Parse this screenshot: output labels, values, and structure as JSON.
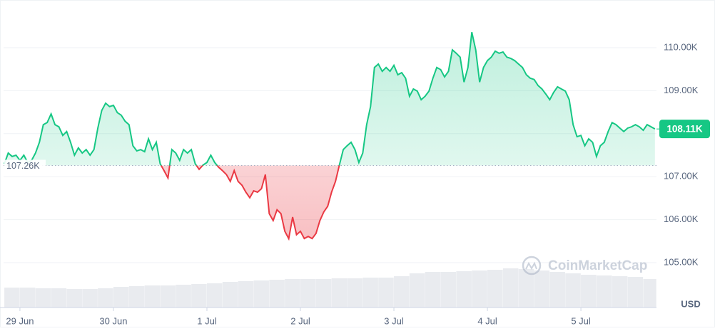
{
  "chart_data": {
    "type": "baseline-line",
    "x": [
      -4,
      -3,
      -2,
      -1,
      0,
      1,
      2,
      3,
      4,
      5,
      6,
      7,
      8,
      9,
      10,
      11,
      12,
      13,
      14,
      15,
      16,
      17,
      18,
      19,
      20,
      21,
      22,
      23,
      24,
      25,
      26,
      27,
      28,
      29,
      30,
      31,
      32,
      33,
      34,
      35,
      36,
      37,
      38,
      39,
      40,
      41,
      42,
      43,
      44,
      45,
      46,
      47,
      48,
      49,
      50,
      51,
      52,
      53,
      54,
      55,
      56,
      57,
      58,
      59,
      60,
      61,
      62,
      63,
      64,
      65,
      66,
      67,
      68,
      69,
      70,
      71,
      72,
      73,
      74,
      75,
      76,
      77,
      78,
      79,
      80,
      81,
      82,
      83,
      84,
      85,
      86,
      87,
      88,
      89,
      90,
      91,
      92,
      93,
      94,
      95,
      96,
      97,
      98,
      99,
      100,
      101,
      102,
      103,
      104,
      105,
      106,
      107,
      108,
      109,
      110,
      111,
      112,
      113,
      114,
      115,
      116,
      117,
      118,
      119,
      120,
      121,
      122,
      123,
      124,
      125,
      126,
      127,
      128,
      129,
      130,
      131,
      132,
      133,
      134,
      135,
      136,
      137,
      138,
      139,
      140,
      141,
      142,
      143,
      144,
      145,
      146,
      147,
      148,
      149,
      150,
      151,
      152,
      153,
      154,
      155,
      156,
      157,
      158,
      159,
      160,
      161,
      162,
      163
    ],
    "values": [
      107300,
      107550,
      107470,
      107500,
      107380,
      107500,
      107330,
      107380,
      107550,
      107800,
      108210,
      108260,
      108460,
      108210,
      108160,
      107960,
      108050,
      107800,
      107500,
      107670,
      107550,
      107630,
      107500,
      107630,
      108130,
      108540,
      108710,
      108630,
      108660,
      108490,
      108430,
      108290,
      108210,
      107720,
      107600,
      107630,
      107580,
      107880,
      107630,
      107800,
      107300,
      107140,
      106970,
      107630,
      107550,
      107380,
      107630,
      107550,
      107630,
      107300,
      107170,
      107270,
      107330,
      107500,
      107330,
      107220,
      107140,
      107050,
      106890,
      107140,
      106890,
      106800,
      106640,
      106510,
      106670,
      106640,
      106720,
      107050,
      106140,
      105980,
      106230,
      106140,
      105730,
      105560,
      106060,
      105650,
      105730,
      105560,
      105610,
      105560,
      105680,
      105980,
      106180,
      106310,
      106640,
      106890,
      107270,
      107630,
      107720,
      107800,
      107630,
      107330,
      107550,
      108210,
      108630,
      109540,
      109620,
      109450,
      109540,
      109450,
      109590,
      109370,
      109420,
      109290,
      108870,
      109040,
      108990,
      108790,
      108870,
      108990,
      109290,
      109540,
      109490,
      109320,
      109450,
      109950,
      109870,
      109780,
      109200,
      109540,
      110360,
      109950,
      109200,
      109540,
      109700,
      109780,
      109920,
      109870,
      109900,
      109780,
      109750,
      109700,
      109620,
      109540,
      109370,
      109290,
      109260,
      109120,
      109040,
      108920,
      108790,
      108960,
      109090,
      109040,
      108990,
      108790,
      108210,
      107930,
      107960,
      107720,
      107880,
      107800,
      107470,
      107720,
      107800,
      108050,
      108260,
      108210,
      108130,
      108050,
      108130,
      108160,
      108210,
      108160,
      108080,
      108210,
      108160,
      108110
    ],
    "color_above": "#16c784",
    "color_below": "#ea3943",
    "baseline": {
      "value": 107260,
      "label": "107.26K"
    },
    "current_price": {
      "value": 108110,
      "label": "108.11K"
    },
    "xlim": [
      -4.2,
      163.4
    ],
    "xticks": [
      {
        "value": 0,
        "label": "29 Jun"
      },
      {
        "value": 24,
        "label": "30 Jun"
      },
      {
        "value": 48,
        "label": "1 Jul"
      },
      {
        "value": 72,
        "label": "2 Jul"
      },
      {
        "value": 96,
        "label": "3 Jul"
      },
      {
        "value": 120,
        "label": "4 Jul"
      },
      {
        "value": 144,
        "label": "5 Jul"
      }
    ],
    "ylim": [
      104000,
      111000
    ],
    "yticks": [
      {
        "value": 105000,
        "label": "105.00K"
      },
      {
        "value": 106000,
        "label": "106.00K"
      },
      {
        "value": 107000,
        "label": "107.00K"
      },
      {
        "value": 108000,
        "label": "108.00K"
      },
      {
        "value": 109000,
        "label": "109.00K"
      },
      {
        "value": 110000,
        "label": "110.00K"
      }
    ],
    "y_unit": "USD",
    "grid": true,
    "watermark": "CoinMarketCap",
    "volume": {
      "color": "#e9ebef",
      "ylim": [
        0,
        100
      ],
      "x": [
        -4,
        0,
        4,
        8,
        12,
        16,
        20,
        24,
        28,
        32,
        36,
        40,
        44,
        48,
        52,
        56,
        60,
        64,
        68,
        72,
        76,
        80,
        84,
        88,
        92,
        96,
        100,
        104,
        108,
        112,
        116,
        120,
        124,
        128,
        132,
        136,
        140,
        144,
        148,
        152,
        156,
        160
      ],
      "values": [
        28,
        28,
        27,
        27,
        26,
        26,
        27,
        29,
        30,
        31,
        31,
        32,
        33,
        34,
        36,
        37,
        38,
        39,
        40,
        40,
        40,
        41,
        41,
        42,
        42,
        44,
        48,
        50,
        50,
        51,
        52,
        53,
        55,
        54,
        52,
        50,
        48,
        46,
        45,
        44,
        43,
        40
      ]
    }
  }
}
